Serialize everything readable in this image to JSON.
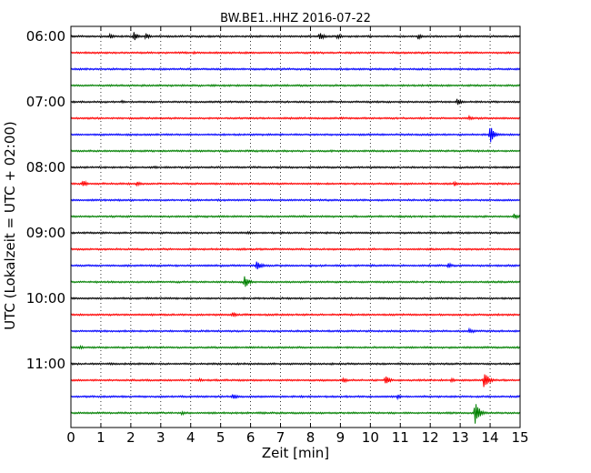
{
  "chart_data": {
    "type": "line",
    "title": "BW.BE1..HHZ 2016-07-22",
    "xlabel": "Zeit  [min]",
    "ylabel": "UTC (Lokalzeit = UTC + 02:00)",
    "xlim": [
      0,
      15
    ],
    "x_ticks": [
      "0",
      "1",
      "2",
      "3",
      "4",
      "5",
      "6",
      "7",
      "8",
      "9",
      "10",
      "11",
      "12",
      "13",
      "14",
      "15"
    ],
    "y_tick_labels": [
      "06:00",
      "07:00",
      "08:00",
      "09:00",
      "10:00",
      "11:00"
    ],
    "grid": "vertical dotted",
    "trace_interval_min": 15,
    "colors": {
      "black": "#000000",
      "red": "#ff0000",
      "blue": "#0000ff",
      "green": "#008000"
    },
    "color_cycle": [
      "black",
      "red",
      "blue",
      "green"
    ],
    "series": [
      {
        "start": "06:00",
        "color": "black",
        "events": [
          [
            1.3,
            0.4
          ],
          [
            2.1,
            0.8
          ],
          [
            2.5,
            0.5
          ],
          [
            8.3,
            0.7
          ],
          [
            8.9,
            0.45
          ],
          [
            11.6,
            0.5
          ]
        ]
      },
      {
        "start": "06:15",
        "color": "red",
        "events": [
          [
            4.1,
            0.25
          ],
          [
            8.1,
            0.2
          ]
        ]
      },
      {
        "start": "06:30",
        "color": "blue",
        "events": [
          [
            10.8,
            0.25
          ],
          [
            13.3,
            0.15
          ]
        ]
      },
      {
        "start": "06:45",
        "color": "green",
        "events": []
      },
      {
        "start": "07:00",
        "color": "black",
        "events": [
          [
            1.7,
            0.25
          ],
          [
            12.9,
            0.6
          ]
        ]
      },
      {
        "start": "07:15",
        "color": "red",
        "events": [
          [
            13.3,
            0.35
          ]
        ]
      },
      {
        "start": "07:30",
        "color": "blue",
        "events": [
          [
            14.0,
            1.6
          ]
        ]
      },
      {
        "start": "07:45",
        "color": "green",
        "events": []
      },
      {
        "start": "08:00",
        "color": "black",
        "events": [
          [
            2.8,
            0.25
          ]
        ]
      },
      {
        "start": "08:15",
        "color": "red",
        "events": [
          [
            0.4,
            0.55
          ],
          [
            2.2,
            0.45
          ],
          [
            12.8,
            0.4
          ]
        ]
      },
      {
        "start": "08:30",
        "color": "blue",
        "events": []
      },
      {
        "start": "08:45",
        "color": "green",
        "events": [
          [
            11.0,
            0.2
          ],
          [
            14.8,
            0.5
          ]
        ]
      },
      {
        "start": "09:00",
        "color": "black",
        "events": [
          [
            5.9,
            0.3
          ],
          [
            12.6,
            0.25
          ]
        ]
      },
      {
        "start": "09:15",
        "color": "red",
        "events": []
      },
      {
        "start": "09:30",
        "color": "blue",
        "events": [
          [
            6.2,
            1.0
          ],
          [
            12.6,
            0.45
          ],
          [
            8.0,
            0.2
          ]
        ]
      },
      {
        "start": "09:45",
        "color": "green",
        "events": [
          [
            5.8,
            1.1
          ]
        ]
      },
      {
        "start": "10:00",
        "color": "black",
        "events": []
      },
      {
        "start": "10:15",
        "color": "red",
        "events": [
          [
            5.4,
            0.55
          ]
        ]
      },
      {
        "start": "10:30",
        "color": "blue",
        "events": [
          [
            13.3,
            0.55
          ]
        ]
      },
      {
        "start": "10:45",
        "color": "green",
        "events": [
          [
            0.3,
            0.35
          ]
        ]
      },
      {
        "start": "11:00",
        "color": "black",
        "events": [
          [
            1.3,
            0.25
          ],
          [
            8.7,
            0.2
          ]
        ]
      },
      {
        "start": "11:15",
        "color": "red",
        "events": [
          [
            4.3,
            0.3
          ],
          [
            9.1,
            0.45
          ],
          [
            10.5,
            0.8
          ],
          [
            12.7,
            0.35
          ],
          [
            13.8,
            1.6
          ]
        ]
      },
      {
        "start": "11:30",
        "color": "blue",
        "events": [
          [
            5.4,
            0.6
          ],
          [
            10.9,
            0.4
          ]
        ]
      },
      {
        "start": "11:45",
        "color": "green",
        "events": [
          [
            3.7,
            0.35
          ],
          [
            13.5,
            2.0
          ]
        ]
      }
    ]
  }
}
